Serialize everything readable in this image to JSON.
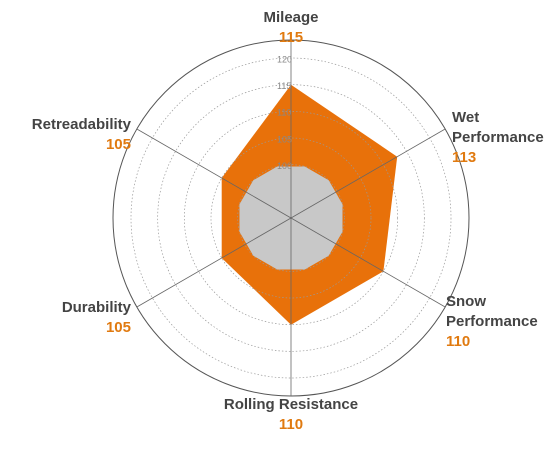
{
  "chart_data": {
    "type": "radar",
    "categories": [
      "Mileage",
      "Wet Performance",
      "Snow Performance",
      "Rolling Resistance",
      "Durability",
      "Retreadability"
    ],
    "values": [
      115,
      113,
      110,
      110,
      105,
      105
    ],
    "color": "#e8710a",
    "reference": {
      "value": 100,
      "color": "#c8c8c8"
    },
    "rlim": [
      90,
      120
    ],
    "rticks": [
      100,
      105,
      110,
      115,
      120
    ],
    "grid": true
  }
}
